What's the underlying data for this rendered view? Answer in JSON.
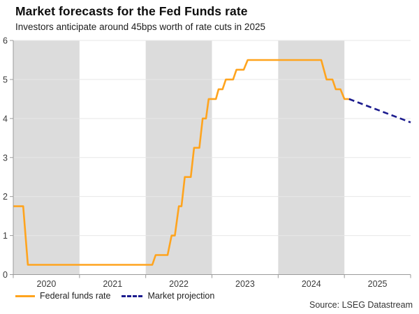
{
  "header": {
    "title": "Market forecasts for the Fed Funds rate",
    "subtitle": "Investors anticipate around 45bps worth of rate cuts in 2025"
  },
  "chart_data": {
    "type": "line",
    "title": "Market forecasts for the Fed Funds rate",
    "subtitle": "Investors anticipate around 45bps worth of rate cuts in 2025",
    "xlabel": "",
    "ylabel": "",
    "x_range": [
      2020,
      2026
    ],
    "ylim": [
      0,
      6
    ],
    "y_ticks": [
      0,
      1,
      2,
      3,
      4,
      5,
      6
    ],
    "x_tick_labels": [
      "2020",
      "2021",
      "2022",
      "2023",
      "2024",
      "2025"
    ],
    "shaded_years": [
      2020,
      2022,
      2024
    ],
    "grid": true,
    "legend_position": "bottom-left",
    "colors": {
      "band": "#dcdcdc",
      "gridline": "#e7e7e7",
      "axis": "#9a9a9a",
      "tick_label": "#3a3a3a",
      "federal_funds": "#FFA41E",
      "projection": "#1C1C8E"
    },
    "series": [
      {
        "name": "Federal funds rate",
        "style": "solid",
        "color": "#FFA41E",
        "points": [
          [
            2020.0,
            1.75
          ],
          [
            2020.15,
            1.75
          ],
          [
            2020.22,
            0.25
          ],
          [
            2022.1,
            0.25
          ],
          [
            2022.15,
            0.5
          ],
          [
            2022.33,
            0.5
          ],
          [
            2022.39,
            1.0
          ],
          [
            2022.44,
            1.0
          ],
          [
            2022.5,
            1.75
          ],
          [
            2022.54,
            1.75
          ],
          [
            2022.59,
            2.5
          ],
          [
            2022.68,
            2.5
          ],
          [
            2022.73,
            3.25
          ],
          [
            2022.81,
            3.25
          ],
          [
            2022.86,
            4.0
          ],
          [
            2022.91,
            4.0
          ],
          [
            2022.95,
            4.5
          ],
          [
            2023.06,
            4.5
          ],
          [
            2023.1,
            4.75
          ],
          [
            2023.16,
            4.75
          ],
          [
            2023.21,
            5.0
          ],
          [
            2023.32,
            5.0
          ],
          [
            2023.37,
            5.25
          ],
          [
            2023.48,
            5.25
          ],
          [
            2023.54,
            5.5
          ],
          [
            2024.65,
            5.5
          ],
          [
            2024.73,
            5.0
          ],
          [
            2024.82,
            5.0
          ],
          [
            2024.87,
            4.75
          ],
          [
            2024.94,
            4.75
          ],
          [
            2025.0,
            4.5
          ],
          [
            2025.07,
            4.5
          ]
        ]
      },
      {
        "name": "Market projection",
        "style": "dashed",
        "color": "#1C1C8E",
        "points": [
          [
            2025.07,
            4.5
          ],
          [
            2026.0,
            3.9
          ]
        ]
      }
    ]
  },
  "legend": {
    "items": [
      {
        "label": "Federal funds rate",
        "color": "#FFA41E",
        "style": "solid"
      },
      {
        "label": "Market projection",
        "color": "#1C1C8E",
        "style": "dashed"
      }
    ]
  },
  "footer": {
    "source": "Source: LSEG Datastream"
  }
}
